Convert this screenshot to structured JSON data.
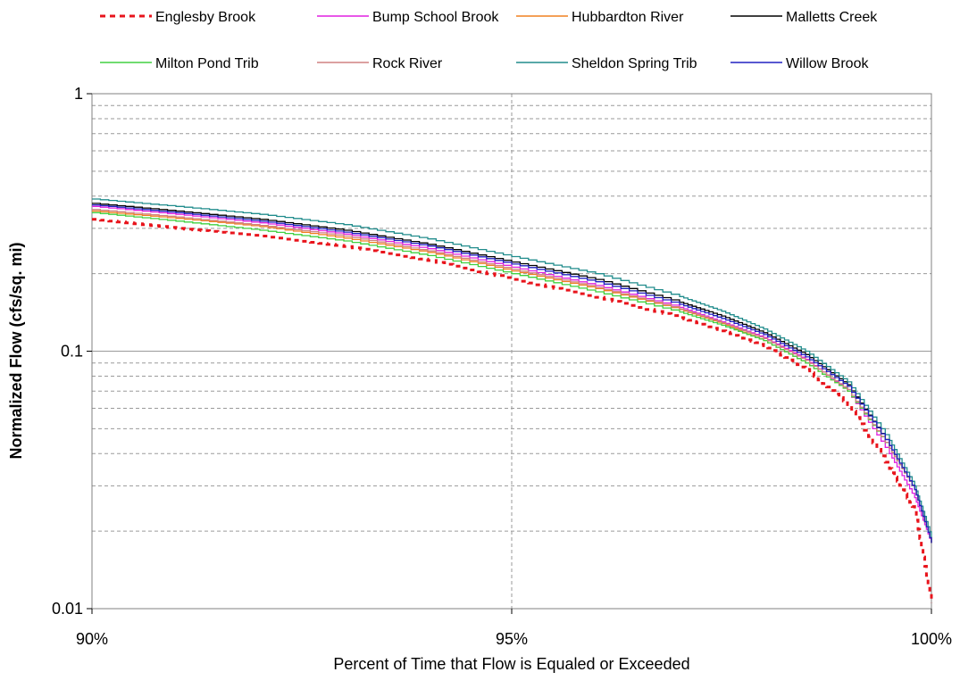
{
  "chart_data": {
    "type": "line",
    "title": "",
    "xlabel": "Percent of Time that Flow is Equaled or Exceeded",
    "ylabel": "Normalized Flow (cfs/sq. mi)",
    "xlim": [
      90,
      100
    ],
    "ylim": [
      0.01,
      1
    ],
    "y_scale": "log",
    "x_ticks": [
      90,
      95,
      100
    ],
    "x_tick_labels": [
      "90%",
      "95%",
      "100%"
    ],
    "y_ticks": [
      0.01,
      0.1,
      1
    ],
    "y_tick_labels": [
      "0.01",
      "0.1",
      "1"
    ],
    "grid": "major solid, minor dashed",
    "legend_position": "top",
    "series": [
      {
        "name": "Englesby Brook",
        "color": "#e8141c",
        "style": "dotted",
        "x": [
          90,
          91,
          92,
          93,
          94,
          95,
          96,
          97,
          97.5,
          98,
          98.5,
          99,
          99.5,
          99.8,
          100
        ],
        "y": [
          0.325,
          0.3,
          0.28,
          0.255,
          0.225,
          0.19,
          0.162,
          0.135,
          0.12,
          0.105,
          0.085,
          0.062,
          0.035,
          0.024,
          0.0105
        ]
      },
      {
        "name": "Bump School Brook",
        "color": "#e020e0",
        "style": "solid",
        "x": [
          90,
          91,
          92,
          93,
          94,
          95,
          96,
          97,
          97.5,
          98,
          98.5,
          99,
          99.5,
          99.8,
          100
        ],
        "y": [
          0.365,
          0.34,
          0.315,
          0.285,
          0.25,
          0.212,
          0.18,
          0.148,
          0.13,
          0.113,
          0.093,
          0.07,
          0.04,
          0.027,
          0.018
        ]
      },
      {
        "name": "Hubbardton River",
        "color": "#f08020",
        "style": "solid",
        "x": [
          90,
          91,
          92,
          93,
          94,
          95,
          96,
          97,
          97.5,
          98,
          98.5,
          99,
          99.5,
          99.8,
          100
        ],
        "y": [
          0.35,
          0.328,
          0.305,
          0.275,
          0.242,
          0.205,
          0.175,
          0.145,
          0.128,
          0.11,
          0.09,
          0.07,
          0.042,
          0.029,
          0.018
        ]
      },
      {
        "name": "Malletts Creek",
        "color": "#000000",
        "style": "solid",
        "x": [
          90,
          91,
          92,
          93,
          94,
          95,
          96,
          97,
          97.5,
          98,
          98.5,
          99,
          99.5,
          99.8,
          100
        ],
        "y": [
          0.375,
          0.35,
          0.325,
          0.295,
          0.26,
          0.222,
          0.19,
          0.155,
          0.137,
          0.118,
          0.097,
          0.074,
          0.043,
          0.029,
          0.018
        ]
      },
      {
        "name": "Milton Pond Trib",
        "color": "#40d040",
        "style": "solid",
        "x": [
          90,
          91,
          92,
          93,
          94,
          95,
          96,
          97,
          97.5,
          98,
          98.5,
          99,
          99.5,
          99.8,
          100
        ],
        "y": [
          0.345,
          0.32,
          0.295,
          0.268,
          0.235,
          0.2,
          0.17,
          0.142,
          0.126,
          0.11,
          0.09,
          0.07,
          0.042,
          0.029,
          0.018
        ]
      },
      {
        "name": "Rock River",
        "color": "#d08080",
        "style": "solid",
        "x": [
          90,
          91,
          92,
          93,
          94,
          95,
          96,
          97,
          97.5,
          98,
          98.5,
          99,
          99.5,
          99.8,
          100
        ],
        "y": [
          0.355,
          0.332,
          0.308,
          0.28,
          0.245,
          0.208,
          0.177,
          0.146,
          0.129,
          0.112,
          0.092,
          0.071,
          0.042,
          0.029,
          0.018
        ]
      },
      {
        "name": "Sheldon Spring Trib",
        "color": "#208c8c",
        "style": "solid",
        "x": [
          90,
          91,
          92,
          93,
          94,
          95,
          96,
          97,
          97.5,
          98,
          98.5,
          99,
          99.5,
          99.8,
          100
        ],
        "y": [
          0.39,
          0.365,
          0.34,
          0.31,
          0.273,
          0.233,
          0.2,
          0.163,
          0.143,
          0.122,
          0.1,
          0.076,
          0.045,
          0.03,
          0.019
        ]
      },
      {
        "name": "Willow Brook",
        "color": "#2020c0",
        "style": "solid",
        "x": [
          90,
          91,
          92,
          93,
          94,
          95,
          96,
          97,
          97.5,
          98,
          98.5,
          99,
          99.5,
          99.8,
          100
        ],
        "y": [
          0.37,
          0.345,
          0.32,
          0.29,
          0.256,
          0.218,
          0.186,
          0.152,
          0.134,
          0.116,
          0.095,
          0.073,
          0.043,
          0.029,
          0.018
        ]
      }
    ]
  }
}
